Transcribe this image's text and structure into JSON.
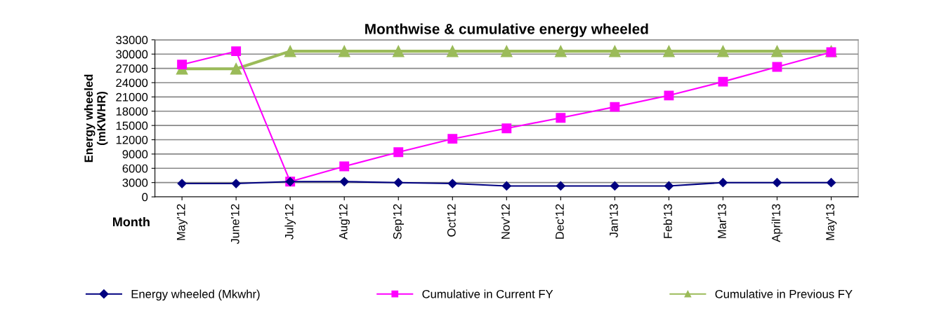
{
  "chart_data": {
    "type": "line",
    "title": "Monthwise & cumulative energy wheeled",
    "xlabel": "Month",
    "ylabel": "Energy wheeled\n(mKWHR)",
    "categories": [
      "May'12",
      "June'12",
      "July'12",
      "Aug'12",
      "Sep'12",
      "Oct'12",
      "Nov'12",
      "Dec'12",
      "Jan'13",
      "Feb'13",
      "Mar'13",
      "April'13",
      "May'13"
    ],
    "series": [
      {
        "name": "Energy wheeled (Mkwhr)",
        "color": "#000080",
        "marker": "diamond",
        "values": [
          2800,
          2800,
          3200,
          3200,
          3000,
          2800,
          2300,
          2300,
          2300,
          2300,
          3000,
          3000,
          3000
        ]
      },
      {
        "name": "Cumulative in Current FY",
        "color": "#ff00ff",
        "marker": "square",
        "values": [
          27800,
          30600,
          3200,
          6400,
          9400,
          12200,
          14400,
          16600,
          18900,
          21300,
          24200,
          27300,
          30400
        ]
      },
      {
        "name": "Cumulative in Previous FY",
        "color": "#9bbb59",
        "marker": "triangle",
        "values": [
          26900,
          26900,
          30600,
          30600,
          30600,
          30600,
          30600,
          30600,
          30600,
          30600,
          30600,
          30600,
          30600
        ]
      }
    ],
    "ylim": [
      0,
      33000
    ],
    "yticks": [
      0,
      3000,
      6000,
      9000,
      12000,
      15000,
      18000,
      21000,
      24000,
      27000,
      30000,
      33000
    ],
    "grid": "y",
    "legend": "bottom",
    "line_style": "solid"
  }
}
